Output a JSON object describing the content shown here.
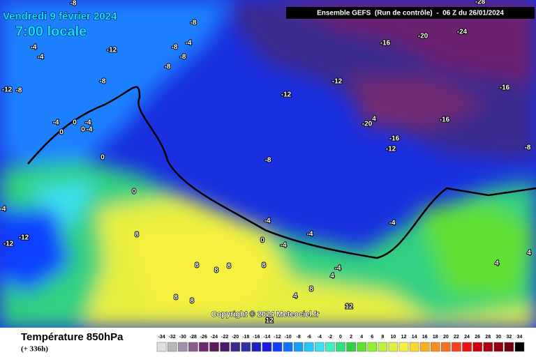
{
  "header": {
    "date": "Vendredi 9 février 2024",
    "time": "7:00 locale",
    "run": "Ensemble GEFS  (Run de contrôle)  -  06 Z du 26/01/2024"
  },
  "copyright": "Copyright © 2024 Meteociel.fr",
  "footer": {
    "title": "Température 850hPa",
    "lead": "(+ 336h)"
  },
  "legend": {
    "values": [
      -34,
      -32,
      -30,
      -28,
      -26,
      -24,
      -22,
      -20,
      -18,
      -16,
      -14,
      -12,
      -10,
      -8,
      -6,
      -4,
      -2,
      0,
      2,
      4,
      6,
      8,
      10,
      12,
      14,
      16,
      18,
      20,
      22,
      24,
      26,
      28,
      30,
      32,
      34
    ],
    "colors": [
      "#e0e0e0",
      "#b8b8b8",
      "#a090a8",
      "#8a5a90",
      "#6e2a70",
      "#5a1a5a",
      "#4a1a6a",
      "#3a2a8a",
      "#3030a0",
      "#2020c0",
      "#1a1ae0",
      "#1040ff",
      "#1070ff",
      "#10a0ff",
      "#20c8ff",
      "#40e0f0",
      "#40f0c0",
      "#30e080",
      "#30d040",
      "#60e030",
      "#90f030",
      "#c0f040",
      "#e0f040",
      "#f8f040",
      "#f8d830",
      "#f8b020",
      "#f89020",
      "#f87020",
      "#f84020",
      "#f01010",
      "#d00010",
      "#b00010",
      "#900010",
      "#700010",
      "#000000"
    ]
  },
  "map": {
    "labels": [
      -8,
      -28,
      -8,
      -24,
      -20,
      -16,
      -12,
      -4,
      -4,
      -8,
      -4,
      -8,
      -8,
      -8,
      -12,
      -12,
      -16,
      -12,
      -8,
      -4,
      0,
      -4,
      0,
      -4,
      0,
      -20,
      4,
      -16,
      -16,
      -12,
      -8,
      0,
      -8,
      0,
      -4,
      -4,
      -4,
      -4,
      0,
      -4,
      -12,
      -12,
      8,
      -4,
      8,
      8,
      8,
      8,
      4,
      4,
      8,
      8,
      8,
      4,
      12,
      12,
      4
    ]
  }
}
